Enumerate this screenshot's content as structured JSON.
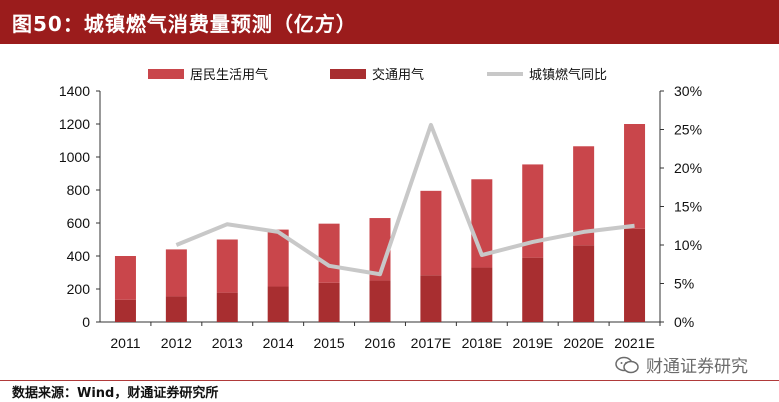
{
  "header": {
    "title": "图50：城镇燃气消费量预测（亿方）"
  },
  "footer": {
    "source": "数据来源：Wind，财通证券研究所"
  },
  "watermark": {
    "text": "财通证券研究",
    "icon": "wechat-icon"
  },
  "colors": {
    "residential": "#c9464b",
    "transport": "#a82e30",
    "yoy": "#c8c8c8",
    "title_bg": "#9b1c1c"
  },
  "chart_data": {
    "type": "bar",
    "stacked": true,
    "title": "城镇燃气消费量预测（亿方）",
    "categories": [
      "2011",
      "2012",
      "2013",
      "2014",
      "2015",
      "2016",
      "2017E",
      "2018E",
      "2019E",
      "2020E",
      "2021E"
    ],
    "series": [
      {
        "name": "交通用气",
        "values": [
          135,
          155,
          178,
          215,
          238,
          252,
          283,
          330,
          390,
          465,
          565
        ]
      },
      {
        "name": "居民生活用气",
        "values": [
          265,
          285,
          322,
          345,
          358,
          378,
          512,
          535,
          565,
          600,
          635
        ]
      },
      {
        "name": "城镇燃气同比",
        "axis": "right",
        "type": "line",
        "values": [
          null,
          10.0,
          12.7,
          11.7,
          7.3,
          6.2,
          25.6,
          8.7,
          10.4,
          11.7,
          12.5
        ]
      }
    ],
    "ylim": [
      0,
      1400
    ],
    "yticks": [
      "0",
      "200",
      "400",
      "600",
      "800",
      "1000",
      "1200",
      "1400"
    ],
    "y2lim": [
      0,
      30
    ],
    "y2ticks": [
      "0%",
      "5%",
      "10%",
      "15%",
      "20%",
      "25%",
      "30%"
    ],
    "legend": [
      "居民生活用气",
      "交通用气",
      "城镇燃气同比"
    ],
    "legend_position": "top"
  }
}
